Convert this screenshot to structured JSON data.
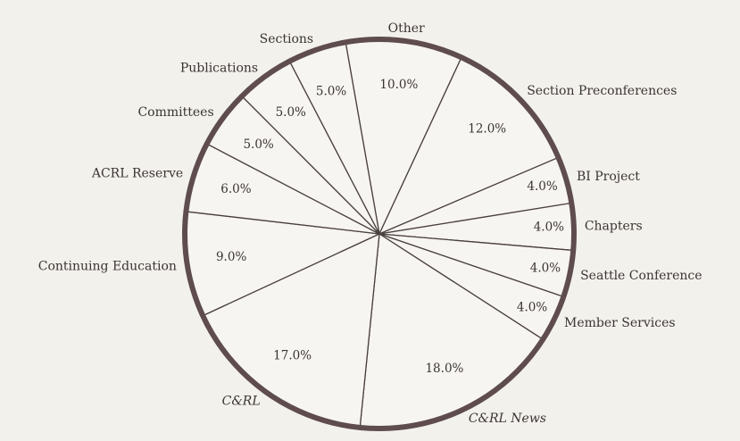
{
  "chart_data": {
    "type": "pie",
    "categories": [
      "Other",
      "Section Preconferences",
      "BI Project",
      "Chapters",
      "Seattle Conference",
      "Member Services",
      "C&RL News",
      "C&RL",
      "Continuing Education",
      "ACRL Reserve",
      "Committees",
      "Publications",
      "Sections"
    ],
    "values": [
      10,
      12,
      4,
      4,
      4,
      4,
      18,
      17,
      9,
      6,
      5,
      5,
      5
    ],
    "value_labels": [
      "10.0%",
      "12.0%",
      "4.0%",
      "4.0%",
      "4.0%",
      "4.0%",
      "18.0%",
      "17.0%",
      "9.0%",
      "6.0%",
      "5.0%",
      "5.0%",
      "5.0%"
    ],
    "color": "#f7f5f1",
    "edge_color": "#5e4c4e"
  }
}
